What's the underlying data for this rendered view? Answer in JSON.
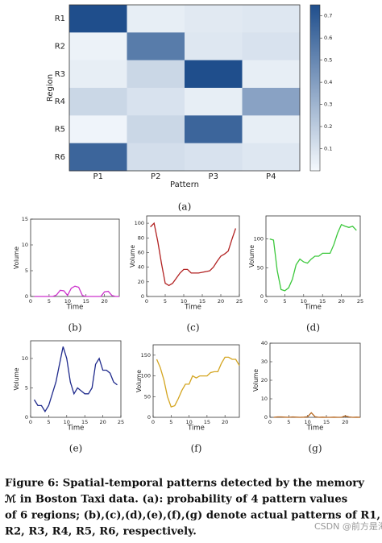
{
  "chart_data": [
    {
      "type": "heatmap",
      "label": "(a)",
      "x_label": "Pattern",
      "y_label": "Region",
      "categories": [
        "P1",
        "P2",
        "P3",
        "P4"
      ],
      "rows": [
        "R1",
        "R2",
        "R3",
        "R4",
        "R5",
        "R6"
      ],
      "values": [
        [
          0.75,
          0.05,
          0.07,
          0.08
        ],
        [
          0.03,
          0.55,
          0.08,
          0.1
        ],
        [
          0.05,
          0.15,
          0.75,
          0.05
        ],
        [
          0.15,
          0.1,
          0.05,
          0.38
        ],
        [
          0.02,
          0.15,
          0.65,
          0.05
        ],
        [
          0.65,
          0.12,
          0.1,
          0.08
        ]
      ],
      "colorbar_lim": [
        0,
        0.75
      ],
      "colorbar_ticks": [
        0.1,
        0.2,
        0.3,
        0.4,
        0.5,
        0.6,
        0.7
      ],
      "colormap": [
        "#f5f9fd",
        "#1f4e8c"
      ]
    },
    {
      "type": "line",
      "label": "(b)",
      "x_label": "Time",
      "y_label": "Volume",
      "color": "#cc33cc",
      "x": [
        1,
        2,
        3,
        4,
        5,
        6,
        7,
        8,
        9,
        10,
        11,
        12,
        13,
        14,
        15,
        16,
        17,
        18,
        19,
        20,
        21,
        22,
        23,
        24
      ],
      "values": [
        0,
        0,
        0,
        0,
        0,
        0,
        0.3,
        1.2,
        1.1,
        0.2,
        1.6,
        2,
        1.8,
        0.2,
        0,
        0,
        0,
        0,
        0,
        0.9,
        1,
        0.2,
        0,
        0
      ],
      "xlim": [
        0,
        24
      ],
      "ylim": [
        0,
        15
      ],
      "xticks": [
        0,
        5,
        10,
        15,
        20
      ],
      "yticks": [
        0,
        5,
        10,
        15
      ]
    },
    {
      "type": "line",
      "label": "(c)",
      "x_label": "Time",
      "y_label": "Volume",
      "color": "#b22222",
      "x": [
        1,
        2,
        3,
        4,
        5,
        6,
        7,
        8,
        9,
        10,
        11,
        12,
        13,
        14,
        15,
        16,
        17,
        18,
        19,
        20,
        21,
        22,
        23,
        24
      ],
      "values": [
        95,
        100,
        75,
        45,
        18,
        15,
        18,
        25,
        32,
        37,
        37,
        32,
        32,
        32,
        33,
        34,
        35,
        40,
        48,
        55,
        58,
        62,
        78,
        93
      ],
      "xlim": [
        0,
        25
      ],
      "ylim": [
        0,
        110
      ],
      "xticks": [
        0,
        5,
        10,
        15,
        20,
        25
      ],
      "yticks": [
        0,
        20,
        40,
        60,
        80,
        100
      ]
    },
    {
      "type": "line",
      "label": "(d)",
      "x_label": "Time",
      "y_label": "Volume",
      "color": "#3cc83c",
      "x": [
        1,
        2,
        3,
        4,
        5,
        6,
        7,
        8,
        9,
        10,
        11,
        12,
        13,
        14,
        15,
        16,
        17,
        18,
        19,
        20,
        21,
        22,
        23,
        24
      ],
      "values": [
        100,
        98,
        45,
        12,
        10,
        15,
        30,
        55,
        65,
        60,
        58,
        65,
        70,
        70,
        75,
        75,
        75,
        90,
        110,
        125,
        122,
        120,
        122,
        115
      ],
      "xlim": [
        0,
        25
      ],
      "ylim": [
        0,
        140
      ],
      "xticks": [
        0,
        5,
        10,
        15,
        20,
        25
      ],
      "yticks": [
        0,
        50,
        100
      ]
    },
    {
      "type": "line",
      "label": "(e)",
      "x_label": "Time",
      "y_label": "Volume",
      "color": "#1f2a8c",
      "x": [
        1,
        2,
        3,
        4,
        5,
        6,
        7,
        8,
        9,
        10,
        11,
        12,
        13,
        14,
        15,
        16,
        17,
        18,
        19,
        20,
        21,
        22,
        23,
        24
      ],
      "values": [
        3,
        2,
        2,
        1,
        2,
        4,
        6,
        9,
        12,
        10,
        6,
        4,
        5,
        4.5,
        4,
        4,
        5,
        9,
        10,
        8,
        8,
        7.5,
        6,
        5.5
      ],
      "xlim": [
        0,
        25
      ],
      "ylim": [
        0,
        13
      ],
      "xticks": [
        0,
        5,
        10,
        15,
        20,
        25
      ],
      "yticks": [
        0,
        5,
        10
      ]
    },
    {
      "type": "line",
      "label": "(f)",
      "x_label": "Time",
      "y_label": "Volume",
      "color": "#d4a520",
      "x": [
        1,
        2,
        3,
        4,
        5,
        6,
        7,
        8,
        9,
        10,
        11,
        12,
        13,
        14,
        15,
        16,
        17,
        18,
        19,
        20,
        21,
        22,
        23,
        24
      ],
      "values": [
        140,
        120,
        90,
        50,
        25,
        28,
        45,
        65,
        80,
        80,
        100,
        95,
        100,
        100,
        100,
        108,
        110,
        110,
        130,
        145,
        145,
        140,
        140,
        125
      ],
      "xlim": [
        0,
        24
      ],
      "ylim": [
        0,
        175
      ],
      "xticks": [
        0,
        5,
        10,
        15,
        20
      ],
      "yticks": [
        0,
        50,
        100,
        150
      ]
    },
    {
      "type": "line",
      "label": "(g)",
      "x_label": "Time",
      "y_label": "Volume",
      "color": "#b5651d",
      "x": [
        1,
        2,
        3,
        4,
        5,
        6,
        7,
        8,
        9,
        10,
        11,
        12,
        13,
        14,
        15,
        16,
        17,
        18,
        19,
        20,
        21,
        22,
        23,
        24
      ],
      "values": [
        0,
        0.2,
        0.2,
        0.1,
        0,
        0.2,
        0.1,
        0,
        0.1,
        0.3,
        2.5,
        0.3,
        0,
        0.1,
        0,
        0,
        0.1,
        0,
        0,
        0.8,
        0.2,
        0,
        0.1,
        0
      ],
      "xlim": [
        0,
        24
      ],
      "ylim": [
        0,
        40
      ],
      "xticks": [
        0,
        5,
        10,
        15,
        20
      ],
      "yticks": [
        0,
        10,
        20,
        30,
        40
      ]
    }
  ],
  "caption": [
    "Figure 6: Spatial-temporal patterns detected by the memory",
    "ℳ in Boston Taxi data. (a): probability of 4 pattern values",
    "of 6 regions; (b),(c),(d),(e),(f),(g) denote actual patterns of R1,",
    "R2, R3, R4, R5, R6, respectively."
  ],
  "watermark": "CSDN @前方是海洋"
}
